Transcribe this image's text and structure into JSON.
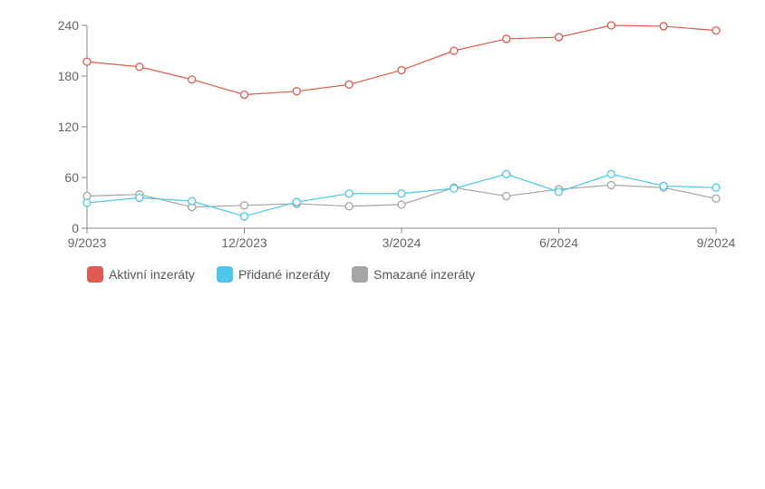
{
  "chart_data": {
    "type": "line",
    "x": [
      "9/2023",
      "10/2023",
      "11/2023",
      "12/2023",
      "1/2024",
      "2/2024",
      "3/2024",
      "4/2024",
      "5/2024",
      "6/2024",
      "7/2024",
      "8/2024",
      "9/2024"
    ],
    "x_tick_labels": [
      "9/2023",
      "12/2023",
      "3/2024",
      "6/2024",
      "9/2024"
    ],
    "y_ticks": [
      0,
      60,
      120,
      180,
      240
    ],
    "ylim": [
      0,
      240
    ],
    "grid": false,
    "legend_position": "bottom-left",
    "series": [
      {
        "name": "Aktivní inzeráty",
        "color": "#e05a4f",
        "values": [
          197,
          191,
          176,
          158,
          162,
          170,
          187,
          210,
          224,
          226,
          240,
          239,
          234
        ]
      },
      {
        "name": "Přidané inzeráty",
        "color": "#4dc7ec",
        "values": [
          30,
          36,
          32,
          14,
          31,
          41,
          41,
          47,
          64,
          43,
          64,
          50,
          48
        ]
      },
      {
        "name": "Smazané inzeráty",
        "color": "#a5a5a5",
        "values": [
          38,
          40,
          25,
          27,
          29,
          26,
          28,
          48,
          38,
          46,
          51,
          48,
          35
        ]
      }
    ]
  }
}
